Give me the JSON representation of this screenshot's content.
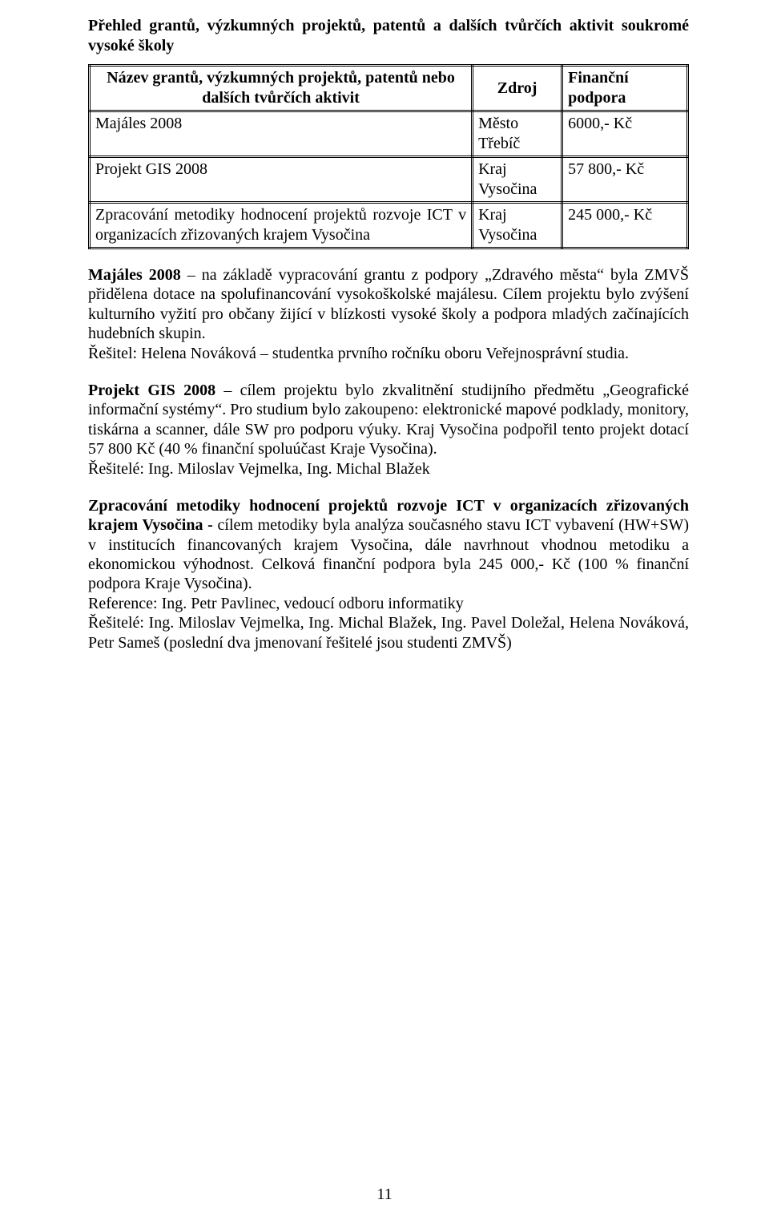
{
  "section_title": "Přehled grantů, výzkumných projektů, patentů a dalších tvůrčích aktivit soukromé vysoké školy",
  "table": {
    "headers": {
      "name": "Název grantů, výzkumných projektů, patentů nebo dalších tvůrčích aktivit",
      "source": "Zdroj",
      "funding": "Finanční podpora"
    },
    "rows": [
      {
        "name": "Majáles 2008",
        "source": "Město Třebíč",
        "funding": "6000,- Kč"
      },
      {
        "name": "Projekt GIS 2008",
        "source": "Kraj Vysočina",
        "funding": "57 800,- Kč"
      },
      {
        "name": "Zpracování metodiky hodnocení projektů rozvoje ICT v organizacích zřizovaných krajem Vysočina",
        "source": "Kraj Vysočina",
        "funding": "245 000,- Kč"
      }
    ]
  },
  "paragraphs": {
    "p1": {
      "lead": "Majáles 2008",
      "body": " – na základě vypracování grantu z podpory „Zdravého města“ byla ZMVŠ přidělena dotace na spolufinancování vysokoškolské majálesu. Cílem projektu bylo zvýšení kulturního vyžití pro občany žijící v blízkosti vysoké školy a podpora mladých začínajících hudebních skupin.",
      "line2": "Řešitel: Helena Nováková – studentka prvního ročníku oboru Veřejnosprávní studia."
    },
    "p2": {
      "lead": "Projekt GIS 2008",
      "body": " – cílem projektu bylo zkvalitnění studijního předmětu „Geografické informační systémy“. Pro studium bylo zakoupeno: elektronické mapové podklady, monitory, tiskárna a scanner, dále SW pro podporu výuky. Kraj Vysočina podpořil tento projekt dotací 57 800 Kč (40 % finanční spoluúčast Kraje Vysočina).",
      "line2": "Řešitelé: Ing. Miloslav Vejmelka, Ing. Michal Blažek"
    },
    "p3": {
      "lead": "Zpracování metodiky hodnocení projektů rozvoje ICT v organizacích zřizovaných krajem Vysočina -",
      "body": " cílem metodiky byla analýza současného stavu ICT vybavení (HW+SW) v institucích financovaných krajem Vysočina, dále navrhnout vhodnou metodiku a ekonomickou výhodnost. Celková finanční podpora byla 245 000,- Kč (100 % finanční podpora Kraje Vysočina).",
      "line2": "Reference: Ing. Petr Pavlinec, vedoucí odboru informatiky",
      "line3": "Řešitelé: Ing. Miloslav Vejmelka, Ing. Michal Blažek, Ing. Pavel Doležal, Helena Nováková, Petr Sameš (poslední dva jmenovaní řešitelé jsou studenti ZMVŠ)"
    }
  },
  "page_number": "11"
}
